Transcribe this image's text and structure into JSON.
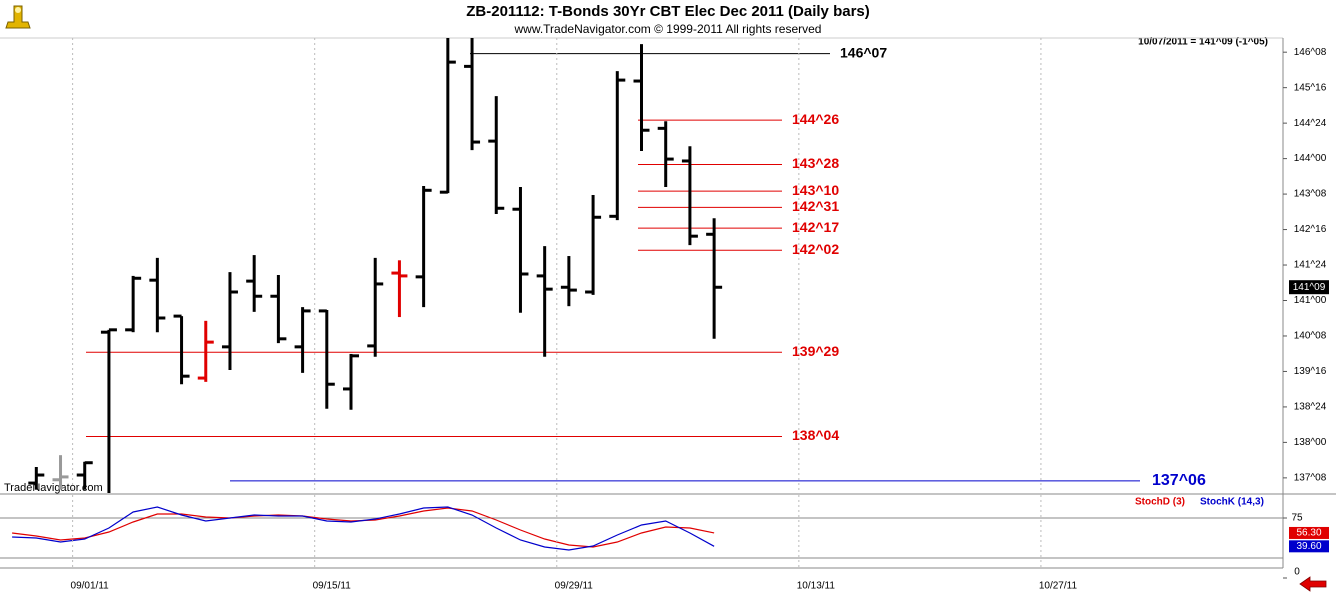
{
  "chart_data": [
    {
      "type": "ohlc",
      "title": "ZB-201112:  T-Bonds 30Yr CBT Elec Dec 2011  (Daily bars)",
      "subtitle": "www.TradeNavigator.com © 1999-2011 All rights reserved",
      "quote": "10/07/2011 = 141^09 (-1^05)",
      "watermark": "TradeNavigator.com",
      "x": [
        "08/30/11",
        "08/31/11",
        "09/01/11",
        "09/02/11",
        "09/05/11",
        "09/06/11",
        "09/07/11",
        "09/08/11",
        "09/09/11",
        "09/12/11",
        "09/13/11",
        "09/14/11",
        "09/15/11",
        "09/16/11",
        "09/19/11",
        "09/20/11",
        "09/21/11",
        "09/22/11",
        "09/23/11",
        "09/26/11",
        "09/27/11",
        "09/28/11",
        "09/29/11",
        "09/30/11",
        "10/03/11",
        "10/04/11",
        "10/05/11",
        "10/06/11",
        "10/07/11"
      ],
      "open": [
        137.14,
        137.21,
        137.31,
        140.33,
        140.38,
        141.43,
        140.67,
        139.36,
        140.02,
        141.41,
        141.09,
        140.02,
        140.78,
        139.13,
        140.04,
        141.58,
        141.5,
        143.29,
        145.95,
        144.37,
        142.93,
        141.52,
        141.28,
        141.18,
        142.78,
        145.64,
        144.64,
        143.95,
        142.4
      ],
      "high": [
        137.48,
        137.73,
        137.59,
        140.38,
        141.52,
        141.9,
        140.67,
        140.57,
        141.6,
        141.96,
        141.54,
        140.86,
        140.8,
        139.87,
        141.9,
        141.85,
        143.42,
        146.65,
        146.65,
        145.32,
        143.4,
        142.15,
        141.94,
        143.23,
        145.85,
        146.42,
        144.79,
        144.26,
        142.74
      ],
      "low": [
        137.0,
        137.0,
        137.0,
        136.9,
        140.33,
        140.33,
        139.23,
        139.28,
        139.53,
        140.76,
        140.1,
        139.47,
        138.71,
        138.69,
        139.81,
        140.65,
        140.86,
        143.27,
        144.18,
        142.83,
        140.74,
        139.81,
        140.88,
        141.12,
        142.7,
        144.16,
        143.4,
        142.17,
        140.19
      ],
      "close": [
        137.31,
        137.27,
        137.57,
        140.38,
        141.47,
        140.63,
        139.4,
        140.12,
        141.18,
        141.09,
        140.19,
        140.78,
        139.23,
        139.83,
        141.35,
        141.52,
        143.33,
        146.04,
        144.35,
        142.95,
        141.56,
        141.24,
        141.22,
        142.76,
        145.66,
        144.6,
        143.99,
        142.36,
        141.28
      ],
      "colors": [
        "#000000",
        "#999999",
        "#000000",
        "#000000",
        "#000000",
        "#000000",
        "#000000",
        "#e00000",
        "#000000",
        "#000000",
        "#000000",
        "#000000",
        "#000000",
        "#000000",
        "#000000",
        "#e00000",
        "#000000",
        "#000000",
        "#000000",
        "#000000",
        "#000000",
        "#000000",
        "#000000",
        "#000000",
        "#000000",
        "#000000",
        "#000000",
        "#000000",
        "#000000"
      ],
      "last_tag": {
        "value": 141.28125,
        "label": "141^09"
      },
      "xlim": [
        "08/29/11",
        "11/10/11"
      ],
      "xticks": [
        "09/01/11",
        "09/15/11",
        "09/29/11",
        "10/13/11",
        "10/27/11"
      ],
      "ylim": [
        136.93,
        146.55
      ],
      "yticks": [
        {
          "value": 146.25,
          "label": "146^08"
        },
        {
          "value": 145.5,
          "label": "145^16"
        },
        {
          "value": 144.75,
          "label": "144^24"
        },
        {
          "value": 144,
          "label": "144^00"
        },
        {
          "value": 143.25,
          "label": "143^08"
        },
        {
          "value": 142.5,
          "label": "142^16"
        },
        {
          "value": 141.75,
          "label": "141^24"
        },
        {
          "value": 141,
          "label": "141^00"
        },
        {
          "value": 140.25,
          "label": "140^08"
        },
        {
          "value": 139.5,
          "label": "139^16"
        },
        {
          "value": 138.75,
          "label": "138^24"
        },
        {
          "value": 138,
          "label": "138^00"
        },
        {
          "value": 137.25,
          "label": "137^08"
        }
      ],
      "levels": [
        {
          "value": 146.21875,
          "label": "146^07",
          "color": "#000000"
        },
        {
          "value": 144.8125,
          "label": "144^26",
          "color": "#e00000"
        },
        {
          "value": 143.875,
          "label": "143^28",
          "color": "#e00000"
        },
        {
          "value": 143.3125,
          "label": "143^10",
          "color": "#e00000"
        },
        {
          "value": 142.96875,
          "label": "142^31",
          "color": "#e00000"
        },
        {
          "value": 142.53125,
          "label": "142^17",
          "color": "#e00000"
        },
        {
          "value": 142.0625,
          "label": "142^02",
          "color": "#e00000"
        },
        {
          "value": 139.90625,
          "label": "139^29",
          "color": "#e00000"
        },
        {
          "value": 138.125,
          "label": "138^04",
          "color": "#e00000"
        },
        {
          "value": 137.1875,
          "label": "137^06",
          "color": "#0000cc"
        }
      ],
      "grid": true
    },
    {
      "type": "line",
      "x": [
        "08/29/11",
        "08/30/11",
        "08/31/11",
        "09/01/11",
        "09/02/11",
        "09/05/11",
        "09/06/11",
        "09/07/11",
        "09/08/11",
        "09/09/11",
        "09/12/11",
        "09/13/11",
        "09/14/11",
        "09/15/11",
        "09/16/11",
        "09/19/11",
        "09/20/11",
        "09/21/11",
        "09/22/11",
        "09/23/11",
        "09/26/11",
        "09/27/11",
        "09/28/11",
        "09/29/11",
        "09/30/11",
        "10/03/11",
        "10/04/11",
        "10/05/11",
        "10/06/11",
        "10/07/11"
      ],
      "series": [
        {
          "name": "StochD (3)",
          "color": "#e00000",
          "tag": {
            "value": 56.3,
            "label": "56.30"
          },
          "values": [
            56.25,
            52.5,
            47.5,
            50,
            57.5,
            70,
            80,
            80,
            76.25,
            75,
            77.5,
            78.75,
            77.5,
            73.75,
            71.25,
            72.5,
            77.5,
            83.75,
            87.5,
            83.75,
            72.5,
            60,
            48.75,
            41.25,
            38.75,
            45,
            56.25,
            63.75,
            62.5,
            56.3
          ]
        },
        {
          "name": "StochK (14,3)",
          "color": "#0000cc",
          "tag": {
            "value": 39.6,
            "label": "39.60"
          },
          "values": [
            51.25,
            50,
            45,
            48.75,
            62.5,
            82.5,
            88.75,
            78.75,
            71.25,
            75,
            78.75,
            77.5,
            77.5,
            71.25,
            70,
            73.75,
            80,
            87.5,
            88.75,
            78.75,
            62.5,
            47.5,
            38.75,
            35,
            40,
            53.75,
            66.25,
            71.25,
            56.25,
            39.6
          ]
        }
      ],
      "ylim": [
        0,
        100
      ],
      "yticks": [
        75,
        0
      ],
      "levels": [
        75,
        25
      ]
    }
  ]
}
